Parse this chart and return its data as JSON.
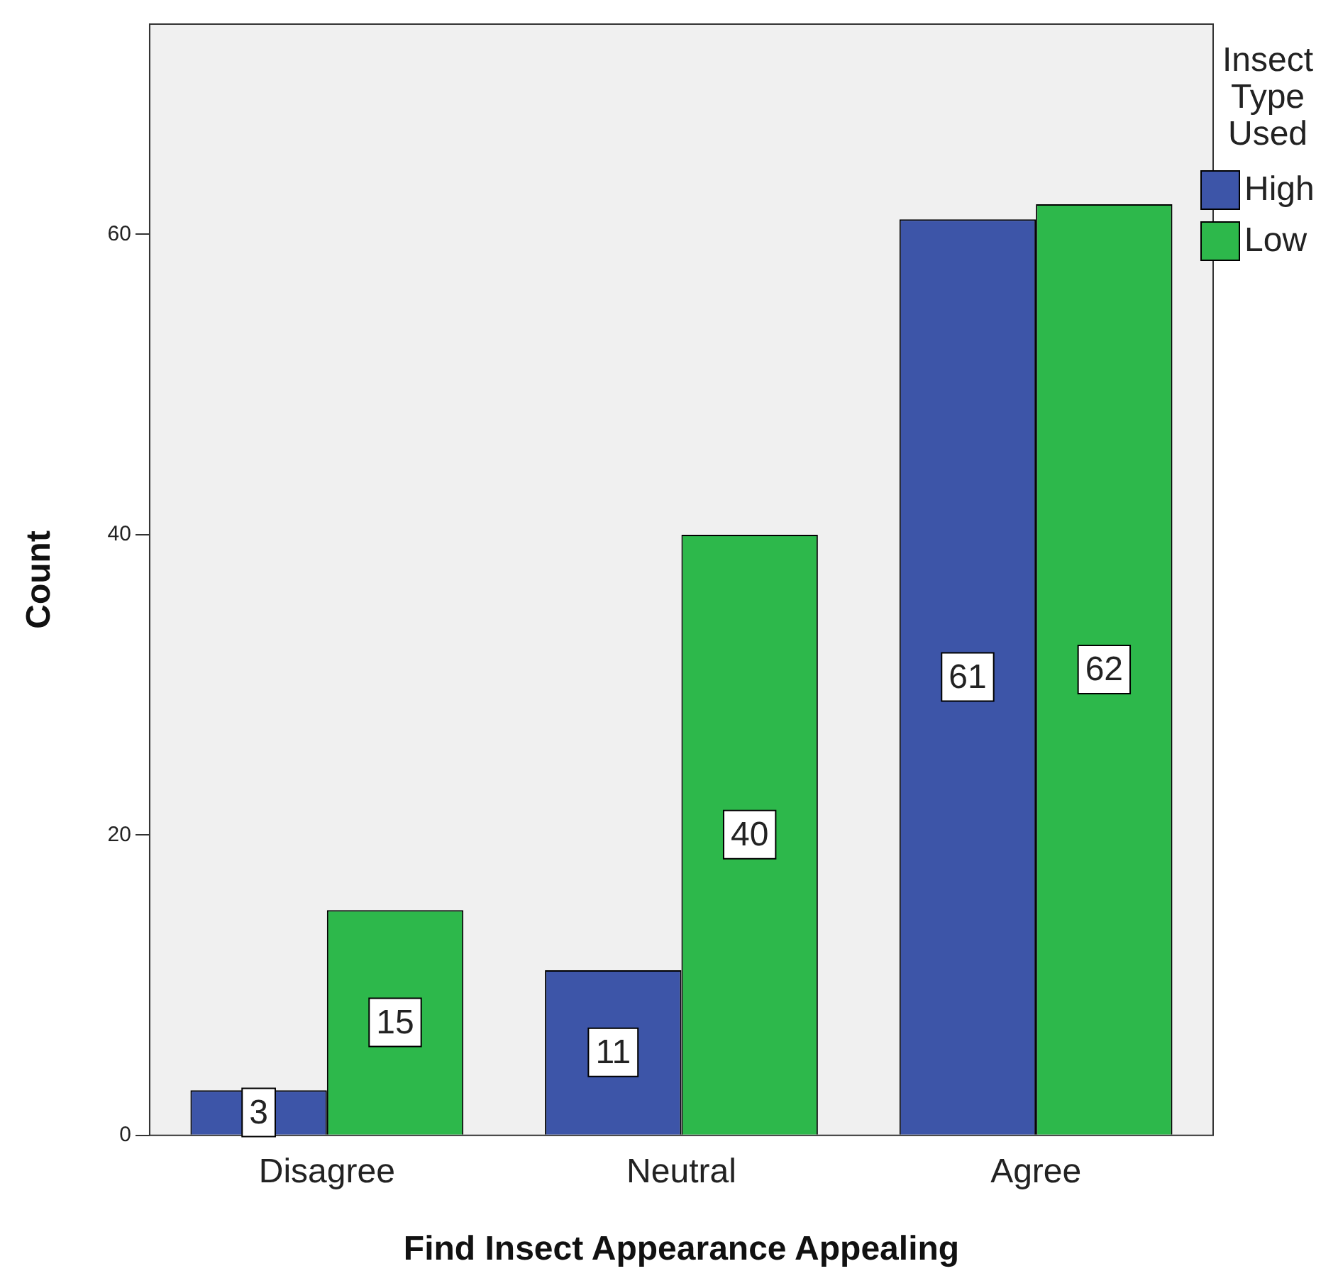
{
  "chart_data": {
    "type": "bar",
    "xlabel": "Find Insect Appearance Appealing",
    "ylabel": "Count",
    "legend_title": "Insect Type Used",
    "categories": [
      "Disagree",
      "Neutral",
      "Agree"
    ],
    "series": [
      {
        "name": "High",
        "color": "#3d55a8",
        "values": [
          3,
          11,
          61
        ]
      },
      {
        "name": "Low",
        "color": "#2db84b",
        "values": [
          15,
          40,
          62
        ]
      }
    ],
    "ylim": [
      0,
      74
    ],
    "yticks": [
      0,
      20,
      40,
      60
    ],
    "grid": false,
    "legend": "top right",
    "data_labels": true
  }
}
